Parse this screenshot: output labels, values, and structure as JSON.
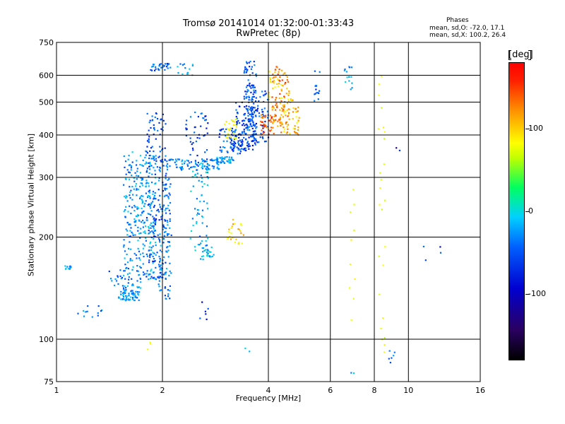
{
  "chart_data": {
    "type": "scatter",
    "title": "Tromsø 20141014 01:32:00-01:33:43",
    "subtitle": "RwPretec (8p)",
    "xlabel": "Frequency [MHz]",
    "ylabel": "Stationary phase Virtual Height [km]",
    "x_scale": "log",
    "y_scale": "log",
    "xlim": [
      1,
      16
    ],
    "ylim": [
      75,
      750
    ],
    "x_ticks": [
      1,
      2,
      4,
      6,
      8,
      10,
      16
    ],
    "x_tick_labels": [
      "1",
      "2",
      "4",
      "6",
      "8",
      "10",
      "16"
    ],
    "y_ticks": [
      75,
      100,
      200,
      300,
      400,
      500,
      600,
      750
    ],
    "y_tick_labels": [
      "75",
      "100",
      "200",
      "300",
      "400",
      "500",
      "600",
      "750"
    ],
    "grid": true,
    "stats": {
      "title": "Phases",
      "o_line": "mean, sd,O: -72.0, 17.1",
      "x_line": "mean, sd,X: 100.2, 26.4"
    },
    "colorbar": {
      "label": "[deg]",
      "range": [
        -180,
        180
      ],
      "ticks": [
        100,
        0,
        -100
      ],
      "tick_labels": [
        "100",
        "0",
        "-100"
      ],
      "colors": [
        "#000000",
        "#0000d0",
        "#00d0ff",
        "#00ff60",
        "#ffff00",
        "#ff9000",
        "#ff0000"
      ]
    },
    "clusters": [
      {
        "f": [
          1.05,
          1.1
        ],
        "h": [
          160,
          165
        ],
        "phase": -60,
        "n": 10
      },
      {
        "f": [
          1.15,
          1.35
        ],
        "h": [
          115,
          130
        ],
        "phase": -70,
        "n": 12
      },
      {
        "f": [
          1.4,
          1.55
        ],
        "h": [
          140,
          160
        ],
        "phase": -75,
        "n": 14
      },
      {
        "f": [
          1.5,
          1.72
        ],
        "h": [
          130,
          140
        ],
        "phase": -65,
        "n": 60
      },
      {
        "f": [
          1.55,
          1.75
        ],
        "h": [
          140,
          360
        ],
        "phase": -65,
        "n": 180
      },
      {
        "f": [
          1.75,
          1.92
        ],
        "h": [
          150,
          360
        ],
        "phase": -60,
        "n": 140
      },
      {
        "f": [
          1.8,
          2.05
        ],
        "h": [
          150,
          470
        ],
        "phase": -85,
        "n": 170
      },
      {
        "f": [
          1.95,
          2.12
        ],
        "h": [
          130,
          300
        ],
        "phase": -70,
        "n": 110
      },
      {
        "f": [
          1.85,
          2.15
        ],
        "h": [
          620,
          650
        ],
        "phase": -80,
        "n": 30
      },
      {
        "f": [
          2.2,
          2.45
        ],
        "h": [
          600,
          650
        ],
        "phase": -60,
        "n": 14
      },
      {
        "f": [
          2.0,
          2.9
        ],
        "h": [
          315,
          340
        ],
        "phase": -70,
        "n": 90
      },
      {
        "f": [
          2.3,
          2.7
        ],
        "h": [
          340,
          470
        ],
        "phase": -90,
        "n": 40
      },
      {
        "f": [
          2.4,
          2.7
        ],
        "h": [
          170,
          330
        ],
        "phase": -55,
        "n": 70
      },
      {
        "f": [
          2.6,
          2.8
        ],
        "h": [
          175,
          190
        ],
        "phase": -50,
        "n": 20
      },
      {
        "f": [
          2.8,
          3.2
        ],
        "h": [
          330,
          345
        ],
        "phase": -60,
        "n": 40
      },
      {
        "f": [
          2.9,
          3.4
        ],
        "h": [
          350,
          420
        ],
        "phase": -85,
        "n": 50
      },
      {
        "f": [
          3.1,
          3.7
        ],
        "h": [
          360,
          410
        ],
        "phase": -95,
        "n": 70
      },
      {
        "f": [
          3.2,
          3.6
        ],
        "h": [
          420,
          500
        ],
        "phase": -95,
        "n": 40
      },
      {
        "f": [
          3.4,
          3.7
        ],
        "h": [
          390,
          660
        ],
        "phase": -85,
        "n": 120
      },
      {
        "f": [
          3.6,
          4.0
        ],
        "h": [
          380,
          540
        ],
        "phase": -90,
        "n": 60
      },
      {
        "f": [
          3.0,
          3.25
        ],
        "h": [
          390,
          450
        ],
        "phase": 90,
        "n": 25
      },
      {
        "f": [
          3.05,
          3.4
        ],
        "h": [
          190,
          230
        ],
        "phase": 110,
        "n": 25
      },
      {
        "f": [
          3.8,
          4.2
        ],
        "h": [
          400,
          460
        ],
        "phase": 150,
        "n": 40
      },
      {
        "f": [
          4.1,
          4.6
        ],
        "h": [
          420,
          640
        ],
        "phase": 140,
        "n": 80
      },
      {
        "f": [
          4.3,
          4.9
        ],
        "h": [
          400,
          520
        ],
        "phase": 120,
        "n": 60
      },
      {
        "f": [
          4.0,
          4.4
        ],
        "h": [
          470,
          620
        ],
        "phase": 100,
        "n": 25
      },
      {
        "f": [
          5.4,
          5.6
        ],
        "h": [
          500,
          620
        ],
        "phase": -80,
        "n": 14
      },
      {
        "f": [
          6.5,
          7.0
        ],
        "h": [
          540,
          640
        ],
        "phase": -60,
        "n": 14
      },
      {
        "f": [
          8.2,
          8.6
        ],
        "h": [
          90,
          640
        ],
        "phase": 80,
        "n": 25
      },
      {
        "f": [
          8.8,
          9.2
        ],
        "h": [
          85,
          95
        ],
        "phase": -80,
        "n": 6
      },
      {
        "f": [
          6.8,
          7.1
        ],
        "h": [
          90,
          640
        ],
        "phase": 80,
        "n": 10
      },
      {
        "f": [
          2.55,
          2.75
        ],
        "h": [
          100,
          130
        ],
        "phase": -100,
        "n": 6
      },
      {
        "f": [
          1.8,
          1.9
        ],
        "h": [
          90,
          100
        ],
        "phase": 80,
        "n": 3
      },
      {
        "f": [
          3.3,
          3.6
        ],
        "h": [
          90,
          100
        ],
        "phase": -30,
        "n": 2
      },
      {
        "f": [
          11.0,
          12.5
        ],
        "h": [
          170,
          205
        ],
        "phase": -100,
        "n": 4
      },
      {
        "f": [
          9.2,
          9.6
        ],
        "h": [
          360,
          370
        ],
        "phase": -120,
        "n": 2
      },
      {
        "f": [
          6.8,
          7.0
        ],
        "h": [
          75,
          80
        ],
        "phase": -50,
        "n": 2
      }
    ]
  }
}
